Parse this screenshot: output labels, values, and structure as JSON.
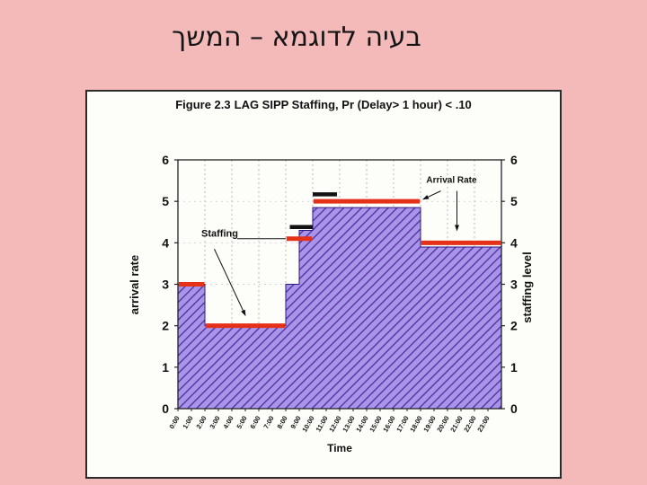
{
  "slide": {
    "title": "בעיה לדוגמא – המשך",
    "background_color": "#f4b9b9"
  },
  "figure": {
    "title_prefix": "Figure 2.3",
    "title_rest": "LAG SIPP Staffing, Pr (Delay> 1 hour) < .10"
  },
  "chart_data": {
    "type": "area",
    "title": "Figure 2.3 LAG SIPP Staffing, Pr (Delay> 1 hour) < .10",
    "xlabel": "Time",
    "ylabel_left": "arrival rate",
    "ylabel_right": "staffing level",
    "xlim": [
      0,
      24
    ],
    "ylim": [
      0,
      6
    ],
    "yticks": [
      0,
      1,
      2,
      3,
      4,
      5,
      6
    ],
    "xtick_hours": [
      0,
      1,
      2,
      3,
      4,
      5,
      6,
      7,
      8,
      9,
      10,
      11,
      12,
      13,
      14,
      15,
      16,
      17,
      18,
      19,
      20,
      21,
      22,
      23
    ],
    "xtick_labels": [
      "0:00",
      "1:00",
      "2:00",
      "3:00",
      "4:00",
      "5:00",
      "6:00",
      "7:00",
      "8:00",
      "9:00",
      "10:00",
      "11:00",
      "12:00",
      "13:00",
      "14:00",
      "15:00",
      "16:00",
      "17:00",
      "18:00",
      "19:00",
      "20:00",
      "21:00",
      "22:00",
      "23:00"
    ],
    "grid": {
      "vertical_every_hours": 2,
      "horizontal_at": [
        1,
        2,
        3,
        4,
        5
      ],
      "color": "#aaaaaa"
    },
    "arrival_rate_area": {
      "name": "Arrival Rate",
      "base_color": "#a995e8",
      "hatch_color": "#4b2da2",
      "outline_color": "#2f1680",
      "steps": [
        {
          "from": 0,
          "to": 2,
          "value": 3
        },
        {
          "from": 2,
          "to": 8,
          "value": 2
        },
        {
          "from": 8,
          "to": 9,
          "value": 3
        },
        {
          "from": 9,
          "to": 10,
          "value": 4.3
        },
        {
          "from": 10,
          "to": 18,
          "value": 4.85
        },
        {
          "from": 18,
          "to": 24,
          "value": 3.9
        }
      ]
    },
    "staffing_line": {
      "name": "Staffing",
      "color": "#e63119",
      "steps": [
        {
          "from": 0,
          "to": 2,
          "value": 3
        },
        {
          "from": 2,
          "to": 8,
          "value": 2
        },
        {
          "from": 8,
          "to": 10,
          "value": 4.1
        },
        {
          "from": 10,
          "to": 18,
          "value": 5
        },
        {
          "from": 18,
          "to": 24,
          "value": 4
        }
      ]
    },
    "staffing_step_black": {
      "color": "#121212",
      "steps": [
        {
          "from": 8.3,
          "to": 10,
          "value": 4.38
        },
        {
          "from": 10,
          "to": 11.8,
          "value": 5.17
        }
      ]
    },
    "annotations": [
      {
        "text": "Staffing",
        "hour": 3.1,
        "value": 4.15,
        "fontsize": 11,
        "lines": [
          {
            "x1": 4.4,
            "y1": 4.1,
            "x2": 8.0,
            "y2": 4.1,
            "arrow": false
          },
          {
            "x1": 2.7,
            "y1": 3.85,
            "x2": 5.0,
            "y2": 2.25,
            "arrow": true
          }
        ]
      },
      {
        "text": "Arrival Rate",
        "hour": 20.3,
        "value": 5.45,
        "fontsize": 10,
        "lines": [
          {
            "x1": 19.5,
            "y1": 5.25,
            "x2": 18.2,
            "y2": 5.05,
            "arrow": true
          },
          {
            "x1": 20.7,
            "y1": 5.25,
            "x2": 20.7,
            "y2": 4.3,
            "arrow": true
          }
        ]
      }
    ]
  }
}
